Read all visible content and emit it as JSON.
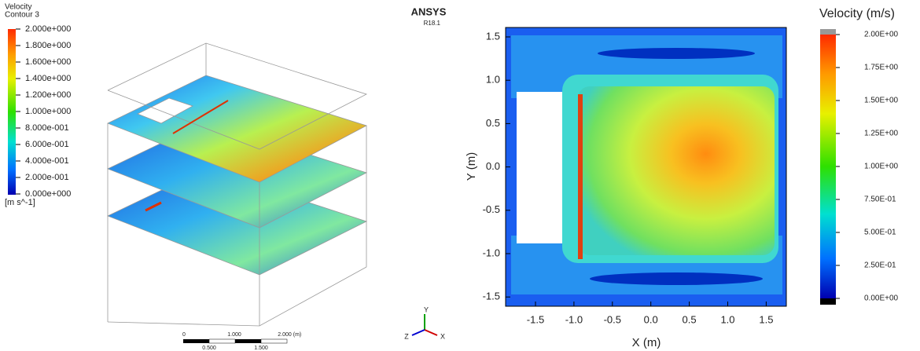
{
  "left_legend": {
    "title": "Velocity",
    "subtitle": "Contour 3",
    "labels": [
      "2.000e+000",
      "1.800e+000",
      "1.600e+000",
      "1.400e+000",
      "1.200e+000",
      "1.000e+000",
      "8.000e-001",
      "6.000e-001",
      "4.000e-001",
      "2.000e-001",
      "0.000e+000"
    ],
    "unit": "[m s^-1]"
  },
  "logo": {
    "name": "ANSYS",
    "version": "R18.1"
  },
  "scale_bar": {
    "top_labels": [
      "0",
      "1.000",
      "2.000",
      "(m)"
    ],
    "bottom_labels": [
      "0.500",
      "1.500"
    ]
  },
  "triad": {
    "labels": [
      "Y",
      "X",
      "Z"
    ]
  },
  "plot": {
    "colorbar_title": "Velocity (m/s)",
    "colorbar_labels": [
      "2.00E+00",
      "1.75E+00",
      "1.50E+00",
      "1.25E+00",
      "1.00E+00",
      "7.50E-01",
      "5.00E-01",
      "2.50E-01",
      "0.00E+00"
    ],
    "x_ticks": [
      "-1.5",
      "-1.0",
      "-0.5",
      "0.0",
      "0.5",
      "1.0",
      "1.5"
    ],
    "y_ticks": [
      "1.5",
      "1.0",
      "0.5",
      "0.0",
      "-0.5",
      "-1.0",
      "-1.5"
    ],
    "x_label": "X (m)",
    "y_label": "Y (m)"
  }
}
